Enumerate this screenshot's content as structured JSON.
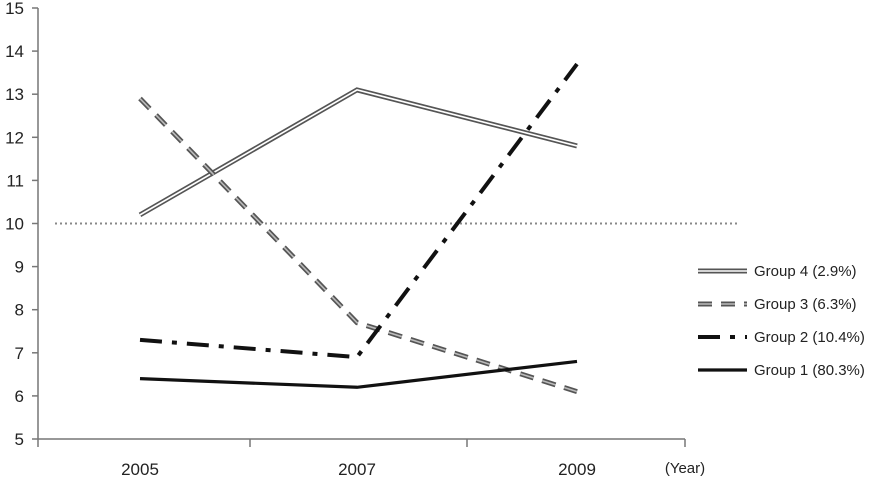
{
  "chart_data": {
    "type": "line",
    "title": "",
    "xlabel": "(Year)",
    "ylabel": "",
    "x": [
      "2005",
      "2007",
      "2009"
    ],
    "ylim": [
      5,
      15
    ],
    "yticks": [
      5,
      6,
      7,
      8,
      9,
      10,
      11,
      12,
      13,
      14,
      15
    ],
    "reference_line": {
      "y": 10,
      "style": "dotted"
    },
    "grid": false,
    "legend_position": "right",
    "series": [
      {
        "name": "Group 4 (2.9%)",
        "style": "double",
        "values": [
          10.2,
          13.1,
          11.8
        ]
      },
      {
        "name": "Group 3 (6.3%)",
        "style": "dashed",
        "values": [
          12.9,
          7.7,
          6.1
        ]
      },
      {
        "name": "Group 2 (10.4%)",
        "style": "dash-dot",
        "values": [
          7.3,
          6.9,
          13.7
        ]
      },
      {
        "name": "Group 1 (80.3%)",
        "style": "solid",
        "values": [
          6.4,
          6.2,
          6.8
        ]
      }
    ]
  }
}
